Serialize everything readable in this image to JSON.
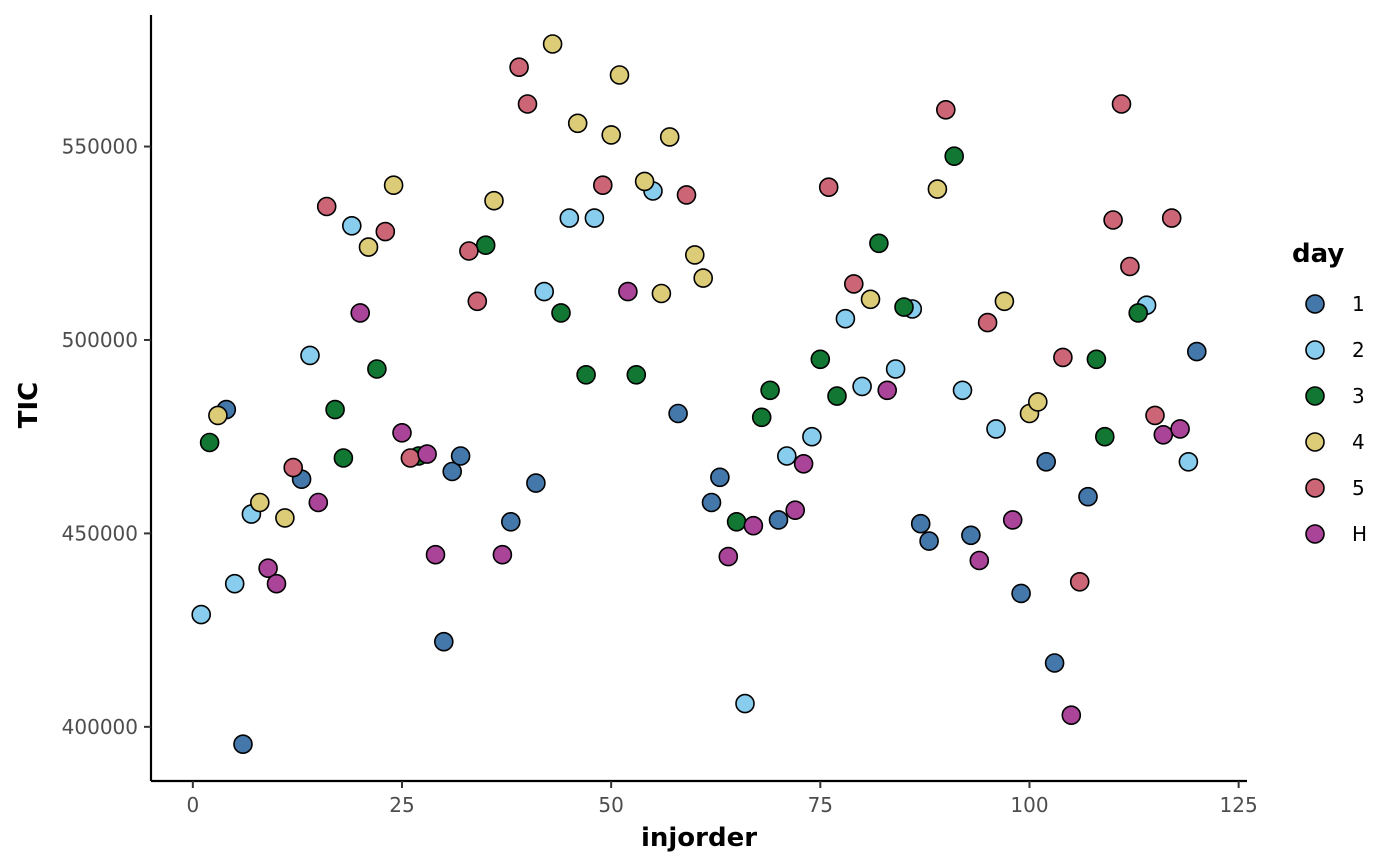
{
  "chart_data": {
    "type": "scatter",
    "title": "",
    "xlabel": "injorder",
    "ylabel": "TIC",
    "xlim": [
      -5,
      126
    ],
    "ylim": [
      386000,
      584000
    ],
    "x_ticks": [
      0,
      25,
      50,
      75,
      100,
      125
    ],
    "y_ticks": [
      400000,
      450000,
      500000,
      550000
    ],
    "grid": false,
    "legend": {
      "title": "day",
      "placement": "right",
      "entries": [
        "1",
        "2",
        "3",
        "4",
        "5",
        "H"
      ]
    },
    "colors": {
      "1": "#4477AA",
      "2": "#88CCEE",
      "3": "#117733",
      "4": "#DDCC77",
      "5": "#CC6677",
      "H": "#AA4499"
    },
    "series": [
      {
        "name": "1",
        "points": [
          [
            4,
            482000
          ],
          [
            6,
            395500
          ],
          [
            13,
            464000
          ],
          [
            30,
            422000
          ],
          [
            31,
            466000
          ],
          [
            32,
            470000
          ],
          [
            38,
            453000
          ],
          [
            41,
            463000
          ],
          [
            58,
            481000
          ],
          [
            62,
            458000
          ],
          [
            63,
            464500
          ],
          [
            70,
            453500
          ],
          [
            87,
            452500
          ],
          [
            88,
            448000
          ],
          [
            93,
            449500
          ],
          [
            99,
            434500
          ],
          [
            102,
            468500
          ],
          [
            103,
            416500
          ],
          [
            107,
            459500
          ],
          [
            120,
            497000
          ]
        ]
      },
      {
        "name": "2",
        "points": [
          [
            1,
            429000
          ],
          [
            5,
            437000
          ],
          [
            7,
            455000
          ],
          [
            14,
            496000
          ],
          [
            19,
            529500
          ],
          [
            42,
            512500
          ],
          [
            45,
            531500
          ],
          [
            48,
            531500
          ],
          [
            55,
            538500
          ],
          [
            66,
            406000
          ],
          [
            71,
            470000
          ],
          [
            74,
            475000
          ],
          [
            78,
            505500
          ],
          [
            80,
            488000
          ],
          [
            84,
            492500
          ],
          [
            86,
            508000
          ],
          [
            92,
            487000
          ],
          [
            96,
            477000
          ],
          [
            114,
            509000
          ],
          [
            119,
            468500
          ]
        ]
      },
      {
        "name": "3",
        "points": [
          [
            2,
            473500
          ],
          [
            17,
            482000
          ],
          [
            18,
            469500
          ],
          [
            22,
            492500
          ],
          [
            27,
            470000
          ],
          [
            35,
            524500
          ],
          [
            44,
            507000
          ],
          [
            47,
            491000
          ],
          [
            53,
            491000
          ],
          [
            65,
            453000
          ],
          [
            68,
            480000
          ],
          [
            69,
            487000
          ],
          [
            75,
            495000
          ],
          [
            77,
            485500
          ],
          [
            82,
            525000
          ],
          [
            85,
            508500
          ],
          [
            91,
            547500
          ],
          [
            108,
            495000
          ],
          [
            109,
            475000
          ],
          [
            113,
            507000
          ]
        ]
      },
      {
        "name": "4",
        "points": [
          [
            3,
            480500
          ],
          [
            8,
            458000
          ],
          [
            11,
            454000
          ],
          [
            21,
            524000
          ],
          [
            24,
            540000
          ],
          [
            36,
            536000
          ],
          [
            43,
            576500
          ],
          [
            46,
            556000
          ],
          [
            50,
            553000
          ],
          [
            51,
            568500
          ],
          [
            54,
            541000
          ],
          [
            56,
            512000
          ],
          [
            57,
            552500
          ],
          [
            60,
            522000
          ],
          [
            61,
            516000
          ],
          [
            81,
            510500
          ],
          [
            89,
            539000
          ],
          [
            97,
            510000
          ],
          [
            100,
            481000
          ],
          [
            101,
            484000
          ]
        ]
      },
      {
        "name": "5",
        "points": [
          [
            12,
            467000
          ],
          [
            16,
            534500
          ],
          [
            23,
            528000
          ],
          [
            26,
            469500
          ],
          [
            33,
            523000
          ],
          [
            34,
            510000
          ],
          [
            39,
            570500
          ],
          [
            40,
            561000
          ],
          [
            49,
            540000
          ],
          [
            59,
            537500
          ],
          [
            76,
            539500
          ],
          [
            79,
            514500
          ],
          [
            90,
            559500
          ],
          [
            95,
            504500
          ],
          [
            104,
            495500
          ],
          [
            106,
            437500
          ],
          [
            110,
            531000
          ],
          [
            111,
            561000
          ],
          [
            112,
            519000
          ],
          [
            115,
            480500
          ],
          [
            117,
            531500
          ]
        ]
      },
      {
        "name": "H",
        "points": [
          [
            9,
            441000
          ],
          [
            10,
            437000
          ],
          [
            15,
            458000
          ],
          [
            20,
            507000
          ],
          [
            25,
            476000
          ],
          [
            28,
            470500
          ],
          [
            29,
            444500
          ],
          [
            37,
            444500
          ],
          [
            52,
            512500
          ],
          [
            64,
            444000
          ],
          [
            67,
            452000
          ],
          [
            72,
            456000
          ],
          [
            73,
            468000
          ],
          [
            83,
            487000
          ],
          [
            94,
            443000
          ],
          [
            98,
            453500
          ],
          [
            105,
            403000
          ],
          [
            116,
            475500
          ],
          [
            118,
            477000
          ]
        ]
      }
    ]
  }
}
